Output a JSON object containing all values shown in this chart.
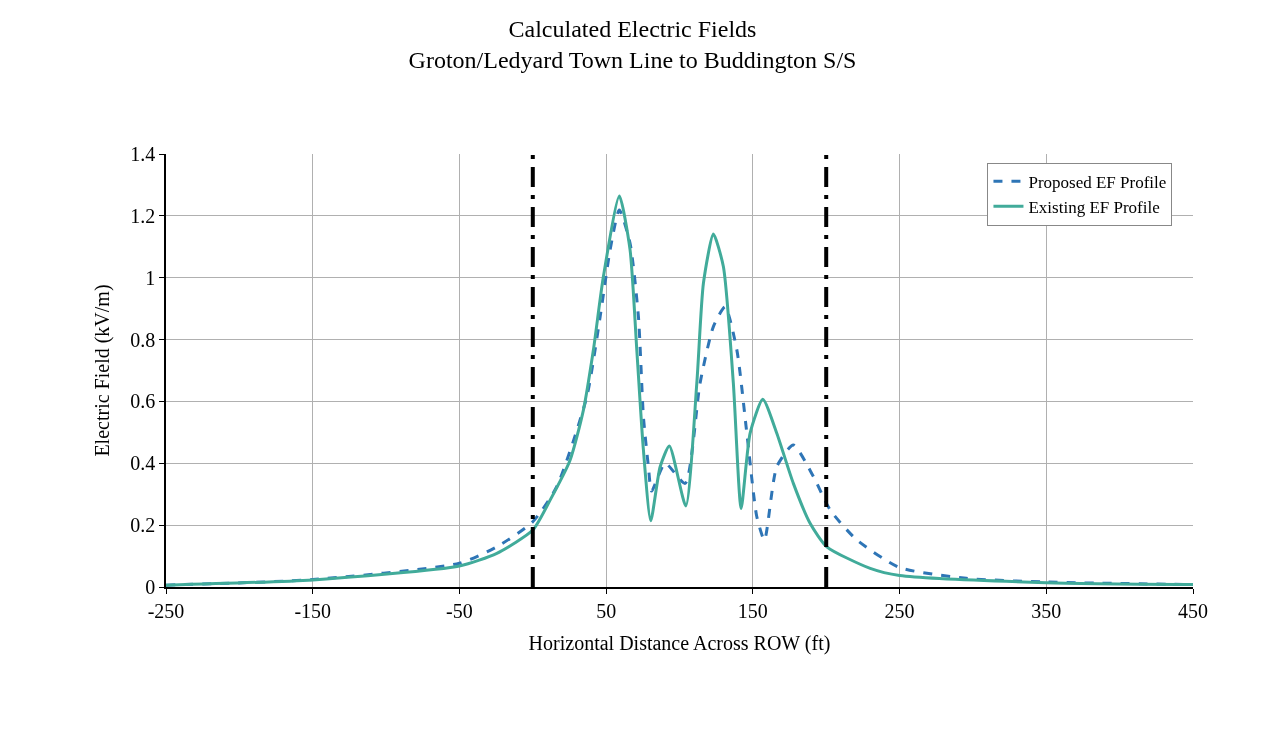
{
  "chart_data": {
    "type": "line",
    "title": "Calculated Electric Fields\nGroton/Ledyard Town Line to Buddington S/S",
    "xlabel": "Horizontal Distance Across ROW (ft)",
    "ylabel": "Electric Field (kV/m)",
    "xlim": [
      -250,
      450
    ],
    "xticks": [
      -250,
      -150,
      -50,
      50,
      150,
      250,
      350,
      450
    ],
    "ylim": [
      0,
      1.4
    ],
    "yticks": [
      0,
      0.2,
      0.4,
      0.6,
      0.8,
      1,
      1.2,
      1.4
    ],
    "grid": true,
    "legend": "top right",
    "series": [
      {
        "name": "Proposed EF Profile",
        "color": "#2e75b6",
        "line_style": "dashed",
        "x": [
          -250,
          -150,
          -50,
          -24.5,
          0,
          16.3,
          36.8,
          45.9,
          52.7,
          59,
          66.3,
          72,
          75.4,
          78.8,
          81,
          90.2,
          103.8,
          114,
          123.1,
          131.1,
          139.1,
          145.9,
          152.7,
          157.9,
          166.3,
          177.6,
          191.3,
          202.7,
          220.9,
          250,
          295.5,
          350,
          450
        ],
        "values": [
          0.006,
          0.024,
          0.077,
          0.13,
          0.211,
          0.324,
          0.615,
          0.874,
          1.09,
          1.219,
          1.111,
          0.874,
          0.551,
          0.389,
          0.31,
          0.4,
          0.335,
          0.659,
          0.842,
          0.906,
          0.766,
          0.497,
          0.227,
          0.152,
          0.389,
          0.459,
          0.357,
          0.249,
          0.152,
          0.063,
          0.028,
          0.016,
          0.008
        ]
      },
      {
        "name": "Existing EF Profile",
        "color": "#41ab9a",
        "line_style": "solid",
        "x": [
          -250,
          -150,
          -50,
          -24.5,
          0,
          11.8,
          25.4,
          34.5,
          41.3,
          48.1,
          59,
          66.3,
          70.9,
          75.4,
          80.4,
          86.8,
          93.1,
          104.3,
          111.8,
          116.3,
          123.1,
          129.9,
          136.7,
          142,
          148.1,
          156.8,
          166.3,
          177.6,
          189,
          200.4,
          230,
          250,
          350,
          450
        ],
        "values": [
          0.006,
          0.023,
          0.068,
          0.109,
          0.184,
          0.281,
          0.41,
          0.572,
          0.766,
          1.003,
          1.264,
          1.09,
          0.766,
          0.443,
          0.214,
          0.389,
          0.456,
          0.262,
          0.659,
          0.982,
          1.141,
          1.036,
          0.659,
          0.254,
          0.497,
          0.607,
          0.497,
          0.335,
          0.206,
          0.13,
          0.06,
          0.037,
          0.014,
          0.008
        ]
      }
    ],
    "ref_lines": [
      {
        "axis": "x",
        "value": 0,
        "color": "#000000",
        "line_style": "dashdot"
      },
      {
        "axis": "x",
        "value": 200,
        "color": "#000000",
        "line_style": "dashdot"
      }
    ]
  }
}
